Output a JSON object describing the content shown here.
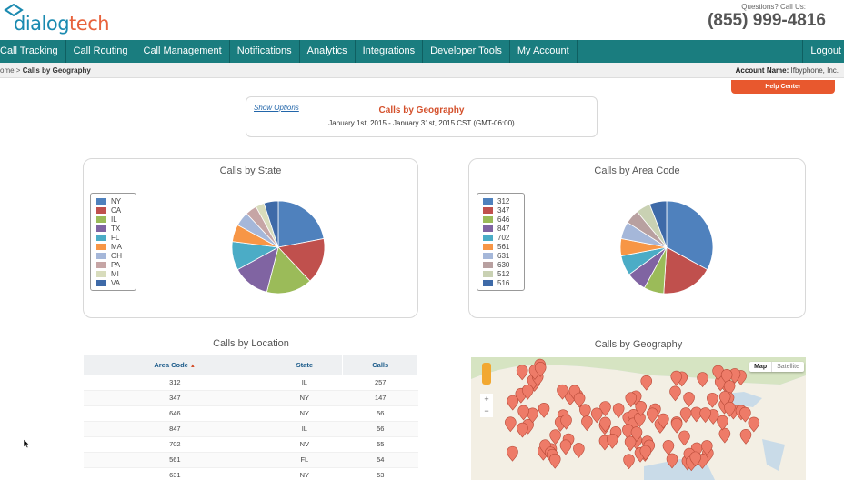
{
  "header": {
    "logo_primary": "dialog",
    "logo_accent": "tech",
    "contact_label": "Questions? Call Us:",
    "phone": "(855) 999-4816"
  },
  "nav": {
    "items": [
      "Call Tracking",
      "Call Routing",
      "Call Management",
      "Notifications",
      "Analytics",
      "Integrations",
      "Developer Tools",
      "My Account"
    ],
    "logout": "Logout"
  },
  "subbar": {
    "breadcrumb_home": "ome >",
    "breadcrumb_current": "Calls by Geography",
    "account_label": "Account Name:",
    "account_value": "Ifbyphone, Inc."
  },
  "help_button": "Help Center",
  "report": {
    "show_options": "Show Options",
    "title": "Calls by Geography",
    "date_range": "January 1st, 2015 - January 31st, 2015 CST (GMT-06:00)"
  },
  "chart_data": [
    {
      "type": "pie",
      "title": "Calls by State",
      "legend": "left",
      "categories": [
        "NY",
        "CA",
        "IL",
        "TX",
        "FL",
        "MA",
        "OH",
        "PA",
        "MI",
        "VA"
      ],
      "values": [
        22,
        16,
        16,
        13,
        10,
        6,
        5,
        4,
        3,
        5
      ],
      "colors": [
        "#4f81bd",
        "#c0504d",
        "#9bbb59",
        "#8064a2",
        "#4bacc6",
        "#f79646",
        "#a5b7d9",
        "#c6a5a5",
        "#d8dcbc",
        "#3e6aa8"
      ]
    },
    {
      "type": "pie",
      "title": "Calls by Area Code",
      "legend": "left",
      "categories": [
        "312",
        "347",
        "646",
        "847",
        "702",
        "561",
        "631",
        "630",
        "512",
        "516"
      ],
      "values": [
        33,
        18,
        7,
        7,
        7,
        6,
        6,
        5,
        5,
        6
      ],
      "colors": [
        "#4f81bd",
        "#c0504d",
        "#9bbb59",
        "#8064a2",
        "#4bacc6",
        "#f79646",
        "#a5b7d9",
        "#b8a0a0",
        "#c9d1b3",
        "#3e6aa8"
      ]
    }
  ],
  "location": {
    "title": "Calls by Location",
    "columns": [
      "Area Code",
      "State",
      "Calls"
    ],
    "sort_indicator": "▲",
    "rows": [
      [
        "312",
        "IL",
        "257"
      ],
      [
        "347",
        "NY",
        "147"
      ],
      [
        "646",
        "NY",
        "56"
      ],
      [
        "847",
        "IL",
        "56"
      ],
      [
        "702",
        "NV",
        "55"
      ],
      [
        "561",
        "FL",
        "54"
      ],
      [
        "631",
        "NY",
        "53"
      ]
    ]
  },
  "geography": {
    "title": "Calls by Geography",
    "map_types": [
      "Map",
      "Satellite"
    ],
    "zoom_in": "+",
    "zoom_out": "−"
  },
  "colors": {
    "nav": "#1a7d7f",
    "accent": "#e8582e",
    "marker": "#ee7b68"
  }
}
